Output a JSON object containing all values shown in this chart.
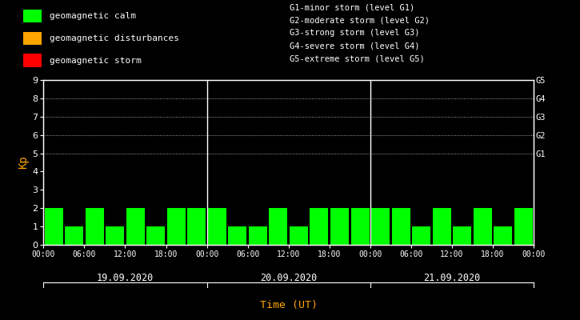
{
  "bg_color": "#000000",
  "bar_color_calm": "#00FF00",
  "bar_color_disturbance": "#FFA500",
  "bar_color_storm": "#FF0000",
  "ylabel": "Kp",
  "xlabel": "Time (UT)",
  "xlabel_color": "#FFA500",
  "ylabel_color": "#FFA500",
  "ylim": [
    0,
    9
  ],
  "yticks": [
    0,
    1,
    2,
    3,
    4,
    5,
    6,
    7,
    8,
    9
  ],
  "days": [
    "19.09.2020",
    "20.09.2020",
    "21.09.2020"
  ],
  "kp_values": [
    [
      2,
      1,
      2,
      1,
      2,
      1,
      2,
      2
    ],
    [
      2,
      1,
      1,
      2,
      1,
      2,
      2,
      2
    ],
    [
      2,
      2,
      1,
      2,
      1,
      2,
      1,
      2
    ]
  ],
  "right_labels": [
    "G5",
    "G4",
    "G3",
    "G2",
    "G1"
  ],
  "right_label_yvals": [
    9,
    8,
    7,
    6,
    5
  ],
  "grid_yvals": [
    5,
    6,
    7,
    8,
    9
  ],
  "legend_items": [
    {
      "label": "geomagnetic calm",
      "color": "#00FF00"
    },
    {
      "label": "geomagnetic disturbances",
      "color": "#FFA500"
    },
    {
      "label": "geomagnetic storm",
      "color": "#FF0000"
    }
  ],
  "storm_levels": [
    "G1-minor storm (level G1)",
    "G2-moderate storm (level G2)",
    "G3-strong storm (level G3)",
    "G4-severe storm (level G4)",
    "G5-extreme storm (level G5)"
  ],
  "tick_label_color": "#FFFFFF",
  "separator_color": "#FFFFFF",
  "font_family": "monospace"
}
